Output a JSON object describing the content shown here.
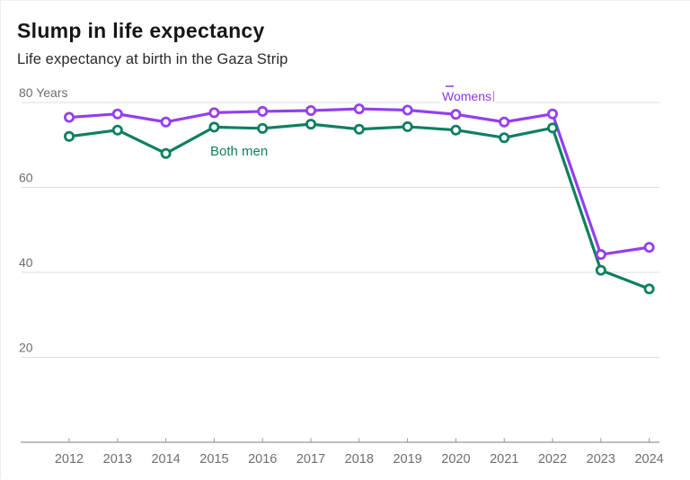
{
  "chart_data": {
    "type": "line",
    "title": "Slump in life expectancy",
    "subtitle": "Life expectancy at birth in the Gaza Strip",
    "xlabel": "",
    "ylabel": "Years",
    "x": [
      2012,
      2013,
      2014,
      2015,
      2016,
      2017,
      2018,
      2019,
      2020,
      2021,
      2022,
      2023,
      2024
    ],
    "series": [
      {
        "name": "Both men",
        "color": "#0e7f63",
        "values": [
          72.0,
          73.5,
          68.0,
          74.2,
          73.9,
          74.9,
          73.7,
          74.3,
          73.5,
          71.7,
          74.0,
          40.5,
          36.1
        ]
      },
      {
        "name": "Womens",
        "color": "#9340ee",
        "values": [
          76.5,
          77.3,
          75.4,
          77.6,
          77.9,
          78.1,
          78.5,
          78.2,
          77.2,
          75.4,
          77.3,
          44.2,
          45.9
        ]
      }
    ],
    "yticks": [
      {
        "value": 80,
        "label": "80 Years"
      },
      {
        "value": 60,
        "label": "60"
      },
      {
        "value": 40,
        "label": "40"
      },
      {
        "value": 20,
        "label": "20"
      }
    ],
    "ylim": [
      0,
      84
    ],
    "grid": true,
    "legend_position": "inline-labels",
    "annotations": [
      {
        "id": "womens",
        "text": "Womens",
        "x": 489,
        "y": 98,
        "color": "#8d35e8",
        "cursor": true,
        "handle": true
      },
      {
        "id": "both-men",
        "text": "Both men",
        "x": 233,
        "y": 160,
        "color": "#0e7f63",
        "cursor": false,
        "handle": false
      }
    ],
    "colors": {
      "gridline": "#dddddd",
      "axis": "#969696",
      "tick_label": "#6e6e6e",
      "background": "#ffffff"
    }
  }
}
